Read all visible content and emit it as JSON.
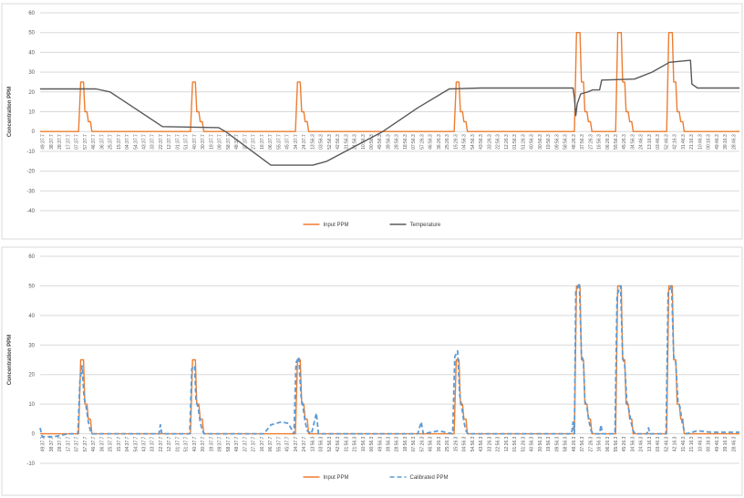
{
  "colors": {
    "input_ppm": "#ED7D31",
    "temperature": "#595959",
    "calibrated_ppm": "#5B9BD5",
    "grid": "#D9D9D9"
  },
  "x_tick_labels": [
    "49:37.7",
    "38:37.7",
    "28:37.7",
    "17:37.7",
    "07:37.7",
    "57:37.7",
    "46:37.7",
    "36:37.7",
    "25:37.7",
    "15:37.7",
    "04:37.7",
    "54:37.7",
    "43:37.7",
    "33:37.7",
    "22:37.7",
    "12:37.7",
    "01:37.7",
    "51:37.7",
    "40:37.7",
    "30:37.7",
    "19:37.7",
    "09:37.7",
    "58:37.7",
    "48:37.7",
    "37:37.7",
    "27:37.7",
    "16:37.7",
    "06:37.7",
    "55:37.7",
    "45:37.7",
    "34:37.7",
    "24:37.7",
    "13:56.3",
    "03:56.3",
    "52:56.3",
    "42:56.3",
    "31:56.3",
    "21:56.3",
    "10:56.3",
    "00:56.3",
    "49:56.3",
    "39:56.3",
    "28:56.3",
    "18:56.3",
    "07:56.3",
    "57:26.3",
    "46:56.3",
    "36:26.3",
    "25:26.3",
    "15:26.3",
    "04:56.3",
    "54:56.3",
    "43:56.3",
    "33:26.3",
    "22:56.3",
    "12:26.3",
    "01:56.3",
    "51:26.3",
    "40:56.3",
    "30:56.3",
    "19:56.3",
    "09:56.3",
    "58:56.3",
    "48:26.3",
    "37:56.3",
    "27:26.3",
    "16:56.3",
    "06:26.3",
    "55:56.3",
    "45:26.3",
    "34:56.3",
    "24:46.3",
    "13:16.3",
    "03:46.3",
    "52:46.3",
    "42:16.3",
    "31:46.3",
    "21:16.3",
    "10:46.3",
    "00:16.3",
    "49:46.3",
    "39:16.3",
    "28:46.3"
  ],
  "charts": [
    {
      "ylabel": "Concentration PPM",
      "ylim": [
        -40,
        60
      ],
      "ytick_labels": [
        "60",
        "50",
        "40",
        "30",
        "20",
        "10",
        "0",
        "-10",
        "-20",
        "-30",
        "-40"
      ],
      "legend": [
        "Input PPM",
        "Temperature"
      ]
    },
    {
      "ylabel": "Concentration PPM",
      "ylim": [
        -10,
        60
      ],
      "ytick_labels": [
        "60",
        "50",
        "40",
        "30",
        "20",
        "10",
        "0",
        "-10"
      ],
      "legend": [
        "Input PPM",
        "Calibrated PPM"
      ]
    }
  ],
  "chart_data": [
    {
      "type": "line",
      "ylabel": "Concentration PPM",
      "ylim": [
        -40,
        60
      ],
      "grid": true,
      "legend_position": "bottom",
      "x_range": [
        0,
        1
      ],
      "series": [
        {
          "name": "Input PPM",
          "points": [
            [
              0,
              0
            ],
            [
              0.055,
              0
            ],
            [
              0.058,
              25
            ],
            [
              0.062,
              25
            ],
            [
              0.064,
              10
            ],
            [
              0.067,
              10
            ],
            [
              0.069,
              5
            ],
            [
              0.072,
              5
            ],
            [
              0.074,
              0
            ],
            [
              0.215,
              0
            ],
            [
              0.218,
              25
            ],
            [
              0.222,
              25
            ],
            [
              0.224,
              10
            ],
            [
              0.227,
              10
            ],
            [
              0.229,
              5
            ],
            [
              0.232,
              5
            ],
            [
              0.234,
              0
            ],
            [
              0.365,
              0
            ],
            [
              0.368,
              25
            ],
            [
              0.372,
              25
            ],
            [
              0.374,
              10
            ],
            [
              0.377,
              10
            ],
            [
              0.379,
              5
            ],
            [
              0.382,
              5
            ],
            [
              0.384,
              0
            ],
            [
              0.592,
              0
            ],
            [
              0.595,
              25
            ],
            [
              0.599,
              25
            ],
            [
              0.601,
              10
            ],
            [
              0.604,
              10
            ],
            [
              0.606,
              5
            ],
            [
              0.609,
              5
            ],
            [
              0.611,
              0
            ],
            [
              0.764,
              0
            ],
            [
              0.767,
              50
            ],
            [
              0.772,
              50
            ],
            [
              0.774,
              25
            ],
            [
              0.777,
              25
            ],
            [
              0.779,
              10
            ],
            [
              0.782,
              10
            ],
            [
              0.784,
              5
            ],
            [
              0.787,
              5
            ],
            [
              0.789,
              0
            ],
            [
              0.823,
              0
            ],
            [
              0.826,
              50
            ],
            [
              0.831,
              50
            ],
            [
              0.833,
              25
            ],
            [
              0.836,
              25
            ],
            [
              0.838,
              10
            ],
            [
              0.841,
              10
            ],
            [
              0.843,
              5
            ],
            [
              0.846,
              5
            ],
            [
              0.848,
              0
            ],
            [
              0.896,
              0
            ],
            [
              0.899,
              50
            ],
            [
              0.904,
              50
            ],
            [
              0.906,
              25
            ],
            [
              0.909,
              25
            ],
            [
              0.911,
              10
            ],
            [
              0.914,
              10
            ],
            [
              0.916,
              5
            ],
            [
              0.919,
              5
            ],
            [
              0.921,
              0
            ],
            [
              1,
              0
            ]
          ]
        },
        {
          "name": "Temperature",
          "points": [
            [
              0,
              21.5
            ],
            [
              0.08,
              21.5
            ],
            [
              0.1,
              20
            ],
            [
              0.175,
              2.5
            ],
            [
              0.255,
              2.0
            ],
            [
              0.265,
              0
            ],
            [
              0.33,
              -17
            ],
            [
              0.39,
              -17
            ],
            [
              0.41,
              -15
            ],
            [
              0.49,
              0
            ],
            [
              0.54,
              12
            ],
            [
              0.585,
              21.5
            ],
            [
              0.63,
              22
            ],
            [
              0.762,
              22
            ],
            [
              0.764,
              17
            ],
            [
              0.766,
              8
            ],
            [
              0.768,
              14
            ],
            [
              0.773,
              19
            ],
            [
              0.783,
              20
            ],
            [
              0.79,
              21
            ],
            [
              0.8,
              21
            ],
            [
              0.803,
              26
            ],
            [
              0.85,
              26.5
            ],
            [
              0.875,
              30
            ],
            [
              0.9,
              35
            ],
            [
              0.93,
              36
            ],
            [
              0.932,
              24
            ],
            [
              0.94,
              22
            ],
            [
              1,
              22
            ]
          ]
        }
      ]
    },
    {
      "type": "line",
      "ylabel": "Concentration PPM",
      "ylim": [
        -10,
        60
      ],
      "grid": true,
      "legend_position": "bottom",
      "x_range": [
        0,
        1
      ],
      "series": [
        {
          "name": "Input PPM",
          "points": [
            [
              0,
              0
            ],
            [
              0.055,
              0
            ],
            [
              0.058,
              25
            ],
            [
              0.062,
              25
            ],
            [
              0.064,
              10
            ],
            [
              0.067,
              10
            ],
            [
              0.069,
              5
            ],
            [
              0.072,
              5
            ],
            [
              0.074,
              0
            ],
            [
              0.215,
              0
            ],
            [
              0.218,
              25
            ],
            [
              0.222,
              25
            ],
            [
              0.224,
              10
            ],
            [
              0.227,
              10
            ],
            [
              0.229,
              5
            ],
            [
              0.232,
              5
            ],
            [
              0.234,
              0
            ],
            [
              0.365,
              0
            ],
            [
              0.368,
              25
            ],
            [
              0.372,
              25
            ],
            [
              0.374,
              10
            ],
            [
              0.377,
              10
            ],
            [
              0.379,
              5
            ],
            [
              0.382,
              5
            ],
            [
              0.384,
              0
            ],
            [
              0.592,
              0
            ],
            [
              0.595,
              25
            ],
            [
              0.599,
              25
            ],
            [
              0.601,
              10
            ],
            [
              0.604,
              10
            ],
            [
              0.606,
              5
            ],
            [
              0.609,
              5
            ],
            [
              0.611,
              0
            ],
            [
              0.764,
              0
            ],
            [
              0.767,
              50
            ],
            [
              0.772,
              50
            ],
            [
              0.774,
              25
            ],
            [
              0.777,
              25
            ],
            [
              0.779,
              10
            ],
            [
              0.782,
              10
            ],
            [
              0.784,
              5
            ],
            [
              0.787,
              5
            ],
            [
              0.789,
              0
            ],
            [
              0.823,
              0
            ],
            [
              0.826,
              50
            ],
            [
              0.831,
              50
            ],
            [
              0.833,
              25
            ],
            [
              0.836,
              25
            ],
            [
              0.838,
              10
            ],
            [
              0.841,
              10
            ],
            [
              0.843,
              5
            ],
            [
              0.846,
              5
            ],
            [
              0.848,
              0
            ],
            [
              0.896,
              0
            ],
            [
              0.899,
              50
            ],
            [
              0.904,
              50
            ],
            [
              0.906,
              25
            ],
            [
              0.909,
              25
            ],
            [
              0.911,
              10
            ],
            [
              0.914,
              10
            ],
            [
              0.916,
              5
            ],
            [
              0.919,
              5
            ],
            [
              0.921,
              0
            ],
            [
              1,
              0
            ]
          ]
        },
        {
          "name": "Calibrated PPM",
          "points": [
            [
              0,
              2
            ],
            [
              0.003,
              -1
            ],
            [
              0.02,
              -1
            ],
            [
              0.04,
              0
            ],
            [
              0.054,
              0
            ],
            [
              0.057,
              18
            ],
            [
              0.06,
              23
            ],
            [
              0.063,
              12
            ],
            [
              0.066,
              9
            ],
            [
              0.069,
              4
            ],
            [
              0.072,
              1
            ],
            [
              0.075,
              0
            ],
            [
              0.17,
              0
            ],
            [
              0.172,
              3
            ],
            [
              0.174,
              0
            ],
            [
              0.214,
              0
            ],
            [
              0.217,
              22
            ],
            [
              0.221,
              23
            ],
            [
              0.223,
              11
            ],
            [
              0.226,
              9
            ],
            [
              0.229,
              4
            ],
            [
              0.232,
              1
            ],
            [
              0.235,
              0
            ],
            [
              0.32,
              0
            ],
            [
              0.33,
              3
            ],
            [
              0.345,
              4
            ],
            [
              0.355,
              3.5
            ],
            [
              0.363,
              0
            ],
            [
              0.366,
              24
            ],
            [
              0.37,
              26
            ],
            [
              0.373,
              13
            ],
            [
              0.376,
              9
            ],
            [
              0.379,
              4
            ],
            [
              0.382,
              1
            ],
            [
              0.388,
              0
            ],
            [
              0.395,
              7
            ],
            [
              0.398,
              0
            ],
            [
              0.54,
              0
            ],
            [
              0.545,
              4
            ],
            [
              0.548,
              0
            ],
            [
              0.57,
              1
            ],
            [
              0.59,
              0
            ],
            [
              0.593,
              26
            ],
            [
              0.597,
              28
            ],
            [
              0.6,
              13
            ],
            [
              0.603,
              9
            ],
            [
              0.606,
              4
            ],
            [
              0.609,
              1
            ],
            [
              0.612,
              0
            ],
            [
              0.76,
              0
            ],
            [
              0.762,
              4
            ],
            [
              0.764,
              0
            ],
            [
              0.766,
              48
            ],
            [
              0.771,
              51
            ],
            [
              0.774,
              27
            ],
            [
              0.777,
              24
            ],
            [
              0.779,
              11
            ],
            [
              0.782,
              9
            ],
            [
              0.785,
              4
            ],
            [
              0.788,
              1
            ],
            [
              0.791,
              0
            ],
            [
              0.8,
              0
            ],
            [
              0.802,
              3
            ],
            [
              0.804,
              0
            ],
            [
              0.822,
              0
            ],
            [
              0.825,
              47
            ],
            [
              0.83,
              50
            ],
            [
              0.833,
              26
            ],
            [
              0.836,
              23
            ],
            [
              0.839,
              11
            ],
            [
              0.842,
              8
            ],
            [
              0.845,
              4
            ],
            [
              0.848,
              1
            ],
            [
              0.851,
              0
            ],
            [
              0.868,
              0
            ],
            [
              0.87,
              2
            ],
            [
              0.872,
              0
            ],
            [
              0.895,
              0
            ],
            [
              0.898,
              48
            ],
            [
              0.903,
              50
            ],
            [
              0.906,
              26
            ],
            [
              0.909,
              24
            ],
            [
              0.912,
              11
            ],
            [
              0.915,
              9
            ],
            [
              0.918,
              4
            ],
            [
              0.921,
              1
            ],
            [
              0.924,
              0
            ],
            [
              0.94,
              1
            ],
            [
              0.96,
              0.5
            ],
            [
              1,
              0.5
            ]
          ]
        }
      ]
    }
  ]
}
